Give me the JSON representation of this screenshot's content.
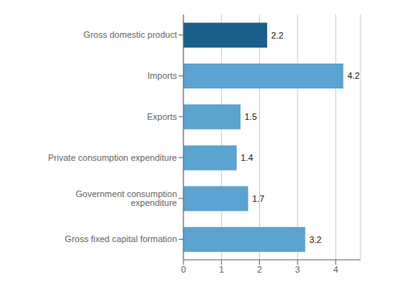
{
  "chart_data": {
    "type": "bar",
    "orientation": "horizontal",
    "categories": [
      "Gross fixed capital formation",
      "Government consumption expenditure",
      "Private consumption expenditure",
      "Exports",
      "Imports",
      "Gross domestic product"
    ],
    "values": [
      3.2,
      1.7,
      1.4,
      1.5,
      4.2,
      2.2
    ],
    "colors": [
      "#5BA3D0",
      "#5BA3D0",
      "#5BA3D0",
      "#5BA3D0",
      "#5BA3D0",
      "#1A5F8A"
    ],
    "xlim": [
      0,
      4.65
    ],
    "xticks": [
      0,
      1,
      2,
      3,
      4
    ],
    "grid": true,
    "data_labels": true
  }
}
